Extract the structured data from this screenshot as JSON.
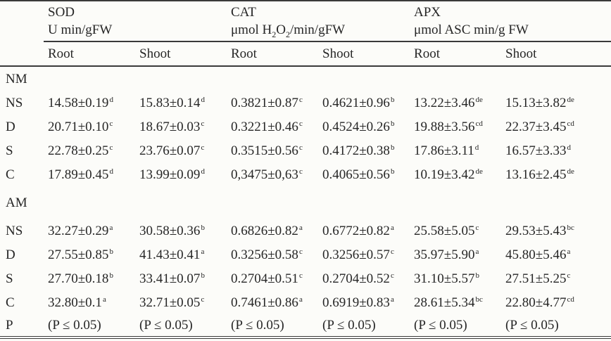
{
  "table": {
    "corner_label": "",
    "groups": [
      {
        "name": "SOD",
        "unit": [
          {
            "t": "U min/gFW"
          }
        ]
      },
      {
        "name": "CAT",
        "unit": [
          {
            "t": "μmol H"
          },
          {
            "t": "2",
            "sub": true
          },
          {
            "t": "O"
          },
          {
            "t": "2",
            "sub": true
          },
          {
            "t": "/min/gFW"
          }
        ]
      },
      {
        "name": "APX",
        "unit": [
          {
            "t": "μmol ASC min/g FW"
          }
        ]
      }
    ],
    "subheaders": [
      "Root",
      "Shoot",
      "Root",
      "Shoot",
      "Root",
      "Shoot"
    ],
    "rows": [
      {
        "label": "NM",
        "section": true,
        "cells": []
      },
      {
        "label": "NS",
        "cells": [
          {
            "v": "14.58±0.19",
            "s": "d"
          },
          {
            "v": "15.83±0.14",
            "s": "d"
          },
          {
            "v": "0.3821±0.87",
            "s": "c"
          },
          {
            "v": "0.4621±0.96",
            "s": "b"
          },
          {
            "v": "13.22±3.46",
            "s": "de"
          },
          {
            "v": "15.13±3.82",
            "s": "de"
          }
        ]
      },
      {
        "label": "D",
        "cells": [
          {
            "v": "20.71±0.10",
            "s": "c"
          },
          {
            "v": "18.67±0.03",
            "s": "c"
          },
          {
            "v": "0.3221±0.46",
            "s": "c"
          },
          {
            "v": "0.4524±0.26",
            "s": "b"
          },
          {
            "v": "19.88±3.56",
            "s": "cd"
          },
          {
            "v": "22.37±3.45",
            "s": "cd"
          }
        ]
      },
      {
        "label": "S",
        "cells": [
          {
            "v": "22.78±0.25",
            "s": "c"
          },
          {
            "v": "23.76±0.07",
            "s": "c"
          },
          {
            "v": "0.3515±0.56",
            "s": "c"
          },
          {
            "v": "0.4172±0.38",
            "s": "b"
          },
          {
            "v": "17.86±3.11",
            "s": "d"
          },
          {
            "v": "16.57±3.33",
            "s": "d"
          }
        ]
      },
      {
        "label": "C",
        "cells": [
          {
            "v": "17.89±0.45",
            "s": "d"
          },
          {
            "v": "13.99±0.09",
            "s": "d"
          },
          {
            "v": "0,3475±0,63",
            "s": "c"
          },
          {
            "v": "0.4065±0.56",
            "s": "b"
          },
          {
            "v": "10.19±3.42",
            "s": "de"
          },
          {
            "v": "13.16±2.45",
            "s": "de"
          }
        ]
      },
      {
        "label": "AM",
        "section": true,
        "cells": []
      },
      {
        "label": "NS",
        "cells": [
          {
            "v": "32.27±0.29",
            "s": "a"
          },
          {
            "v": "30.58±0.36",
            "s": "b"
          },
          {
            "v": "0.6826±0.82",
            "s": "a"
          },
          {
            "v": "0.6772±0.82",
            "s": "a"
          },
          {
            "v": "25.58±5.05",
            "s": "c"
          },
          {
            "v": "29.53±5.43",
            "s": "bc"
          }
        ]
      },
      {
        "label": "D",
        "cells": [
          {
            "v": "27.55±0.85",
            "s": "b"
          },
          {
            "v": "41.43±0.41",
            "s": "a"
          },
          {
            "v": "0.3256±0.58",
            "s": "c"
          },
          {
            "v": "0.3256±0.57",
            "s": "c"
          },
          {
            "v": "35.97±5.90",
            "s": "a"
          },
          {
            "v": "45.80±5.46",
            "s": "a"
          }
        ]
      },
      {
        "label": "S",
        "cells": [
          {
            "v": "27.70±0.18",
            "s": "b"
          },
          {
            "v": "33.41±0.07",
            "s": "b"
          },
          {
            "v": "0.2704±0.51",
            "s": "c"
          },
          {
            "v": "0.2704±0.52",
            "s": "c"
          },
          {
            "v": "31.10±5.57",
            "s": "b"
          },
          {
            "v": "27.51±5.25",
            "s": "c"
          }
        ]
      },
      {
        "label": "C",
        "cells": [
          {
            "v": "32.80±0.1",
            "s": "a"
          },
          {
            "v": "32.71±0.05",
            "s": "c"
          },
          {
            "v": "0.7461±0.86",
            "s": "a"
          },
          {
            "v": "0.6919±0.83",
            "s": "a"
          },
          {
            "v": "28.61±5.34",
            "s": "bc"
          },
          {
            "v": "22.80±4.77",
            "s": "cd"
          }
        ]
      },
      {
        "label": "P",
        "cells": [
          {
            "v": "(P ≤ 0.05)"
          },
          {
            "v": "(P ≤ 0.05)"
          },
          {
            "v": "(P ≤ 0.05)"
          },
          {
            "v": "(P ≤ 0.05)"
          },
          {
            "v": "(P ≤ 0.05)"
          },
          {
            "v": "(P ≤ 0.05)"
          }
        ]
      }
    ],
    "colors": {
      "rule": "#3a3a3a",
      "text": "#262626",
      "background": "#fcfcf9"
    }
  }
}
